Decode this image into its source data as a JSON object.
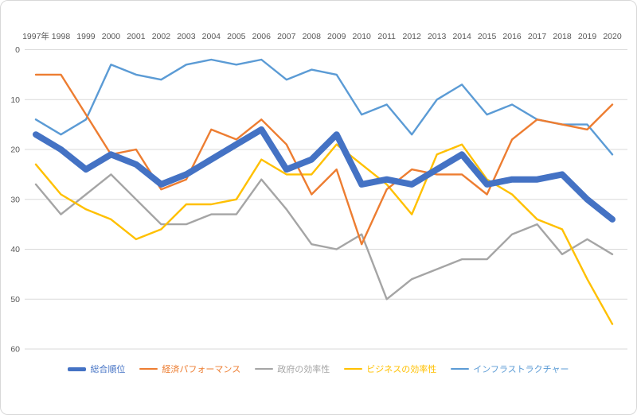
{
  "chart_data": {
    "type": "line",
    "title": "",
    "x": [
      1997,
      1998,
      1999,
      2000,
      2001,
      2002,
      2003,
      2004,
      2005,
      2006,
      2007,
      2008,
      2009,
      2010,
      2011,
      2012,
      2013,
      2014,
      2015,
      2016,
      2017,
      2018,
      2019,
      2020
    ],
    "x_labels": [
      "1997年",
      "1998",
      "1999",
      "2000",
      "2001",
      "2002",
      "2003",
      "2004",
      "2005",
      "2006",
      "2007",
      "2008",
      "2009",
      "2010",
      "2011",
      "2012",
      "2013",
      "2014",
      "2015",
      "2016",
      "2017",
      "2018",
      "2019",
      "2020"
    ],
    "x_axis_position": "top",
    "y_axis": {
      "ticks": [
        0,
        10,
        20,
        30,
        40,
        50,
        60
      ],
      "tick_labels": [
        "0",
        "10",
        "20",
        "30",
        "40",
        "50",
        "60"
      ],
      "range": [
        0,
        60
      ],
      "inverted": true
    },
    "grid": true,
    "gridline_color": "#d9d9d9",
    "tick_label_color": "#595959",
    "legend_position": "bottom",
    "series": [
      {
        "name": "総合順位",
        "color": "#4472c4",
        "thickness": "thick",
        "values": [
          17,
          20,
          24,
          21,
          23,
          27,
          25,
          22,
          19,
          16,
          24,
          22,
          17,
          27,
          26,
          27,
          24,
          21,
          27,
          26,
          26,
          25,
          30,
          34
        ]
      },
      {
        "name": "経済パフォーマンス",
        "color": "#ed7d31",
        "thickness": "thin",
        "values": [
          5,
          5,
          13,
          21,
          20,
          28,
          26,
          16,
          18,
          14,
          19,
          29,
          24,
          39,
          28,
          24,
          25,
          25,
          29,
          18,
          14,
          15,
          16,
          11
        ]
      },
      {
        "name": "政府の効率性",
        "color": "#a5a5a5",
        "thickness": "thin",
        "values": [
          27,
          33,
          29,
          25,
          30,
          35,
          35,
          33,
          33,
          26,
          32,
          39,
          40,
          37,
          50,
          46,
          44,
          42,
          42,
          37,
          35,
          41,
          38,
          41
        ]
      },
      {
        "name": "ビジネスの効率性",
        "color": "#ffc000",
        "thickness": "thin",
        "values": [
          23,
          29,
          32,
          34,
          38,
          36,
          31,
          31,
          30,
          22,
          25,
          25,
          19,
          23,
          27,
          33,
          21,
          19,
          26,
          29,
          34,
          36,
          46,
          55
        ]
      },
      {
        "name": "インフラストラクチャー",
        "color": "#5b9bd5",
        "thickness": "thin",
        "values": [
          14,
          17,
          14,
          3,
          5,
          6,
          3,
          2,
          3,
          2,
          6,
          4,
          5,
          13,
          11,
          17,
          10,
          7,
          13,
          11,
          14,
          15,
          15,
          21
        ]
      }
    ]
  }
}
